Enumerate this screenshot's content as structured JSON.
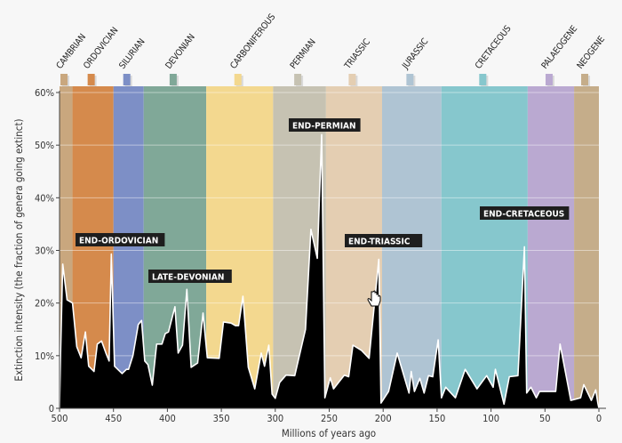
{
  "chart_data": {
    "type": "area",
    "title": "",
    "xlabel": "Millions of years ago",
    "ylabel": "Extinction intensity (the fraction of genera going extinct)",
    "xlim": [
      500,
      0
    ],
    "ylim": [
      0,
      60
    ],
    "x_ticks": [
      500,
      450,
      400,
      350,
      300,
      250,
      200,
      150,
      100,
      50,
      0
    ],
    "x_tick_labels": [
      "500",
      "450",
      "400",
      "350",
      "300",
      "250",
      "200",
      "150",
      "100",
      "50",
      "0"
    ],
    "y_ticks": [
      0,
      10,
      20,
      30,
      40,
      50,
      60
    ],
    "y_tick_labels": [
      "0",
      "10%",
      "20%",
      "30%",
      "40%",
      "50%",
      "60%"
    ],
    "grid": true,
    "fill_color": "#000000",
    "line_color": "#ffffff",
    "periods": [
      {
        "name": "CAMBRIAN",
        "start": 500,
        "end": 488,
        "color": "#c9a77e"
      },
      {
        "name": "ORDOVICIAN",
        "start": 488,
        "end": 450,
        "color": "#d58a4c"
      },
      {
        "name": "SILURIAN",
        "start": 450,
        "end": 422,
        "color": "#7d8fc6"
      },
      {
        "name": "DEVONIAN",
        "start": 422,
        "end": 364,
        "color": "#80a898"
      },
      {
        "name": "CARBONIFEROUS",
        "start": 364,
        "end": 302,
        "color": "#f3d88f"
      },
      {
        "name": "PERMIAN",
        "start": 302,
        "end": 253,
        "color": "#c6c2b2"
      },
      {
        "name": "TRIASSIC",
        "start": 253,
        "end": 201,
        "color": "#e4ceb2"
      },
      {
        "name": "JURASSIC",
        "start": 201,
        "end": 146,
        "color": "#afc4d3"
      },
      {
        "name": "CRETACEOUS",
        "start": 146,
        "end": 66,
        "color": "#86c7cd"
      },
      {
        "name": "PALAEOGENE",
        "start": 66,
        "end": 23,
        "color": "#baa9d1"
      },
      {
        "name": "NEOGENE",
        "start": 23,
        "end": 0,
        "color": "#c5ad8a"
      }
    ],
    "events": [
      {
        "label": "END-ORDOVICIAN",
        "x": 452,
        "y": 29.3
      },
      {
        "label": "LATE-DEVONIAN",
        "x": 372,
        "y": 18
      },
      {
        "label": "END-PERMIAN",
        "x": 257,
        "y": 52
      },
      {
        "label": "END-TRIASSIC",
        "x": 204,
        "y": 28.3
      },
      {
        "label": "END-CRETACEOUS",
        "x": 69,
        "y": 30.7
      }
    ],
    "series": [
      {
        "x": [
          500,
          499,
          497,
          493,
          488,
          484,
          480,
          476,
          473,
          468,
          465,
          461,
          457,
          454,
          452,
          449,
          442,
          438,
          436,
          432,
          427,
          424,
          421,
          418,
          414,
          410,
          405,
          402,
          399,
          393,
          390,
          386,
          382,
          378,
          372,
          367,
          363,
          352,
          348,
          341,
          337,
          334,
          330,
          325,
          319,
          313,
          310,
          306,
          303,
          300,
          296,
          290,
          282,
          272,
          267,
          261,
          257,
          254,
          249,
          246,
          236,
          232,
          228,
          220,
          213,
          204,
          202,
          195,
          187,
          176,
          174,
          171,
          166,
          162,
          158,
          154,
          149,
          146,
          142,
          133,
          124,
          113,
          104,
          98,
          96,
          88,
          83,
          75,
          69,
          67,
          63,
          58,
          55,
          40,
          36,
          26,
          17,
          14,
          7,
          3,
          1,
          0
        ],
        "y": [
          0,
          10.5,
          27.4,
          20.6,
          20,
          11.7,
          9.6,
          14.5,
          8,
          7,
          12.2,
          12.8,
          10.5,
          9,
          29.3,
          8,
          6.6,
          7.4,
          7.4,
          10,
          15.9,
          16.7,
          9,
          8.3,
          4.4,
          12.2,
          12.2,
          14.2,
          14.5,
          19.3,
          10.5,
          12,
          22.6,
          7.8,
          8.6,
          18.1,
          9.6,
          9.5,
          16.4,
          16.2,
          15.7,
          15.7,
          21.3,
          7.8,
          3.7,
          10.5,
          8,
          12,
          2.7,
          1.9,
          4.9,
          6.3,
          6.2,
          15,
          34,
          28.5,
          52,
          2,
          5.8,
          3.7,
          6.3,
          6,
          12,
          11,
          9.5,
          28.3,
          1,
          3.2,
          10.5,
          2.9,
          7,
          3.2,
          5.7,
          2.9,
          6.2,
          6,
          13,
          2,
          4,
          2,
          7.4,
          3.7,
          6.2,
          4,
          7.4,
          0.8,
          6,
          6.2,
          30.7,
          2.9,
          4,
          2,
          3.2,
          3.2,
          12.2,
          1.5,
          2,
          4.5,
          1.5,
          3.5,
          1,
          0
        ]
      }
    ]
  }
}
